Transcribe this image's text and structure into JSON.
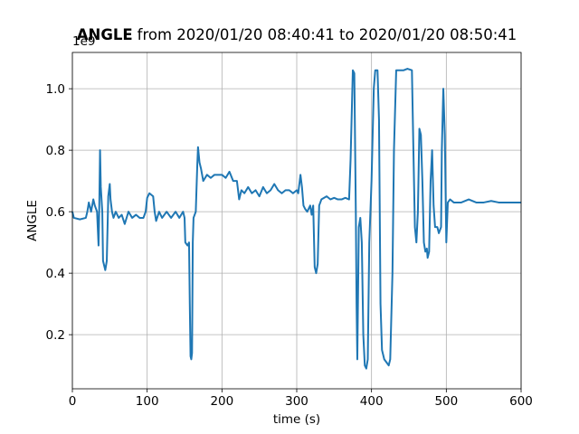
{
  "chart_data": {
    "type": "line",
    "title_bold": "ANGLE",
    "title": "from 2020/01/20 08:40:41 to 2020/01/20 08:50:41",
    "offset_label": "1e9",
    "xlabel": "time (s)",
    "ylabel": "ANGLE",
    "xlim": [
      0,
      600
    ],
    "ylim": [
      0.024,
      1.118
    ],
    "xticks": [
      0,
      100,
      200,
      300,
      400,
      500,
      600
    ],
    "yticks": [
      0.2,
      0.4,
      0.6,
      0.8,
      {
        "value": 1,
        "label": "1.0"
      }
    ],
    "grid": true,
    "x": [
      0,
      2,
      10,
      18,
      20,
      22,
      25,
      28,
      30,
      33,
      35,
      36,
      37,
      38,
      40,
      41,
      43,
      44,
      46,
      48,
      50,
      51,
      53,
      55,
      58,
      62,
      66,
      70,
      75,
      80,
      85,
      90,
      95,
      98,
      100,
      103,
      108,
      110,
      112,
      116,
      120,
      126,
      132,
      138,
      143,
      148,
      150,
      151,
      154,
      156,
      157,
      158,
      159,
      160,
      161,
      162,
      165,
      167,
      168,
      170,
      172,
      175,
      180,
      185,
      190,
      195,
      200,
      205,
      210,
      215,
      220,
      223,
      226,
      230,
      235,
      240,
      245,
      250,
      255,
      260,
      265,
      270,
      275,
      280,
      285,
      290,
      295,
      300,
      302,
      305,
      307,
      309,
      311,
      314,
      318,
      320,
      322,
      324,
      326,
      328,
      330,
      333,
      340,
      345,
      350,
      355,
      360,
      365,
      370,
      372,
      375,
      377,
      379,
      380,
      381,
      383,
      385,
      387,
      389,
      391,
      393,
      395,
      397,
      400,
      403,
      405,
      408,
      410,
      412,
      414,
      417,
      420,
      423,
      425,
      428,
      430,
      433,
      438,
      443,
      448,
      454,
      456,
      458,
      460,
      462,
      464,
      466,
      468,
      470,
      472,
      474,
      475,
      477,
      479,
      481,
      483,
      485,
      488,
      490,
      493,
      494,
      496,
      498,
      500,
      502,
      505,
      510,
      520,
      530,
      540,
      550,
      560,
      570,
      580,
      590,
      600
    ],
    "series": [
      {
        "name": "ANGLE",
        "color": "#1f77b4",
        "values": [
          0.6,
          0.58,
          0.575,
          0.58,
          0.6,
          0.63,
          0.6,
          0.64,
          0.62,
          0.6,
          0.49,
          0.62,
          0.8,
          0.68,
          0.6,
          0.44,
          0.42,
          0.41,
          0.44,
          0.65,
          0.69,
          0.64,
          0.6,
          0.58,
          0.6,
          0.58,
          0.59,
          0.56,
          0.6,
          0.58,
          0.59,
          0.58,
          0.58,
          0.6,
          0.645,
          0.66,
          0.65,
          0.6,
          0.57,
          0.6,
          0.58,
          0.6,
          0.58,
          0.6,
          0.58,
          0.6,
          0.58,
          0.5,
          0.49,
          0.5,
          0.3,
          0.13,
          0.12,
          0.14,
          0.5,
          0.58,
          0.6,
          0.75,
          0.81,
          0.76,
          0.74,
          0.7,
          0.72,
          0.71,
          0.72,
          0.72,
          0.72,
          0.71,
          0.73,
          0.7,
          0.7,
          0.64,
          0.67,
          0.66,
          0.68,
          0.66,
          0.67,
          0.65,
          0.68,
          0.66,
          0.67,
          0.69,
          0.67,
          0.66,
          0.67,
          0.67,
          0.66,
          0.67,
          0.66,
          0.72,
          0.68,
          0.62,
          0.61,
          0.6,
          0.62,
          0.59,
          0.62,
          0.42,
          0.4,
          0.43,
          0.62,
          0.64,
          0.65,
          0.64,
          0.645,
          0.64,
          0.64,
          0.645,
          0.64,
          0.77,
          1.06,
          1.05,
          0.6,
          0.3,
          0.12,
          0.55,
          0.58,
          0.5,
          0.2,
          0.1,
          0.09,
          0.12,
          0.5,
          0.7,
          1.0,
          1.06,
          1.06,
          0.9,
          0.3,
          0.15,
          0.12,
          0.11,
          0.1,
          0.12,
          0.4,
          0.8,
          1.06,
          1.06,
          1.06,
          1.065,
          1.06,
          0.8,
          0.55,
          0.5,
          0.6,
          0.87,
          0.85,
          0.7,
          0.5,
          0.47,
          0.48,
          0.45,
          0.47,
          0.7,
          0.8,
          0.62,
          0.55,
          0.55,
          0.53,
          0.55,
          0.8,
          1.0,
          0.85,
          0.5,
          0.63,
          0.64,
          0.63,
          0.63,
          0.64,
          0.63,
          0.63,
          0.635,
          0.63,
          0.63,
          0.63,
          0.63
        ]
      }
    ]
  }
}
